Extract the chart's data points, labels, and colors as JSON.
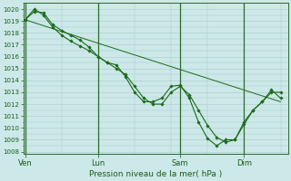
{
  "xlabel": "Pression niveau de la mer( hPa )",
  "bg_color": "#cce8e8",
  "plot_bg_color": "#cce8e8",
  "grid_color": "#aacaca",
  "line_color": "#1a6b1a",
  "marker_color": "#1a6b1a",
  "ylim": [
    1007.8,
    1020.5
  ],
  "yticks": [
    1008,
    1009,
    1010,
    1011,
    1012,
    1013,
    1014,
    1015,
    1016,
    1017,
    1018,
    1019,
    1020
  ],
  "xtick_labels": [
    "Ven",
    "Lun",
    "Sam",
    "Dim"
  ],
  "xtick_positions": [
    0,
    8,
    17,
    24
  ],
  "xlim": [
    -0.2,
    28.8
  ],
  "series1_x": [
    0,
    1,
    2,
    3,
    4,
    5,
    6,
    7,
    8,
    9,
    10,
    11,
    12,
    13,
    14,
    15,
    16,
    17,
    18,
    19,
    20,
    21,
    22,
    23,
    24,
    25,
    26,
    27,
    28
  ],
  "series1_y": [
    1019.1,
    1019.8,
    1019.7,
    1018.7,
    1018.2,
    1017.8,
    1017.4,
    1016.8,
    1016.0,
    1015.5,
    1015.3,
    1014.3,
    1013.0,
    1012.2,
    1012.2,
    1012.5,
    1013.5,
    1013.6,
    1012.5,
    1010.5,
    1009.1,
    1008.5,
    1009.0,
    1009.0,
    1010.5,
    1011.5,
    1012.2,
    1013.0,
    1013.0
  ],
  "series2_x": [
    0,
    1,
    2,
    3,
    4,
    5,
    6,
    7,
    8,
    9,
    10,
    11,
    12,
    13,
    14,
    15,
    16,
    17,
    18,
    19,
    20,
    21,
    22,
    23,
    24,
    25,
    26,
    27,
    28
  ],
  "series2_y": [
    1019.1,
    1020.0,
    1019.5,
    1018.5,
    1017.8,
    1017.3,
    1016.9,
    1016.5,
    1016.0,
    1015.5,
    1015.0,
    1014.5,
    1013.5,
    1012.5,
    1012.0,
    1012.0,
    1013.0,
    1013.5,
    1012.8,
    1011.5,
    1010.2,
    1009.2,
    1008.8,
    1009.0,
    1010.3,
    1011.5,
    1012.2,
    1013.2,
    1012.5
  ],
  "series3_x": [
    0,
    28
  ],
  "series3_y": [
    1019.1,
    1012.2
  ],
  "vline_positions": [
    0,
    8,
    17,
    24
  ]
}
